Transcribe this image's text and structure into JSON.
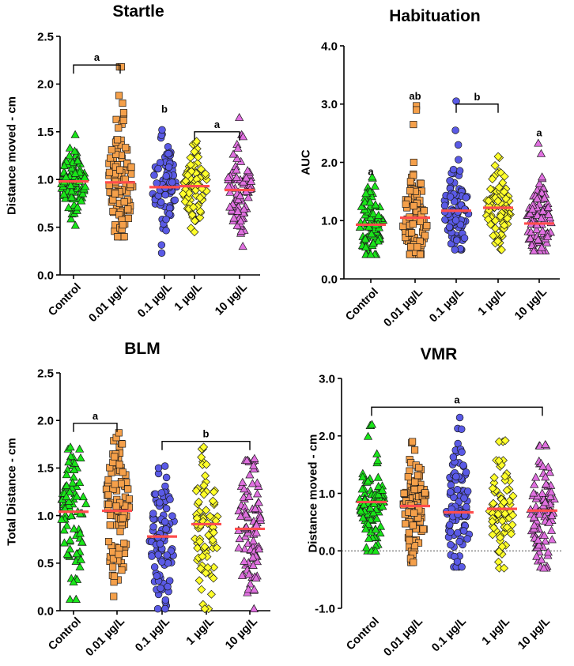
{
  "colors": {
    "Control": "#19e619",
    "0.01 µg/L": "#f5a04a",
    "0.1 µg/L": "#5a5ae6",
    "1 µg/L": "#ffff2a",
    "10 µg/L": "#e070e0",
    "mean": "#ff4d4d",
    "axis": "#000000"
  },
  "markers": {
    "Control": "triangle",
    "0.01 µg/L": "square",
    "0.1 µg/L": "circle",
    "1 µg/L": "diamond",
    "10 µg/L": "triangle"
  },
  "chart_data": [
    {
      "id": "startle",
      "type": "scatter",
      "title": "Startle",
      "ylabel": "Distance moved - cm",
      "categories": [
        "Control",
        "0.01 µg/L",
        "0.1 µg/L",
        "1 µg/L",
        "10 µg/L"
      ],
      "ylim": [
        0,
        2.5
      ],
      "yticks": [
        0.0,
        0.5,
        1.0,
        1.5,
        2.0,
        2.5
      ],
      "tick_labels": [
        "0.0",
        "0.5",
        "1.0",
        "1.5",
        "2.0",
        "2.5"
      ],
      "zero_line": false,
      "groups": [
        {
          "name": "Control",
          "mean": 0.98,
          "min": 0.52,
          "max": 1.47,
          "n": 90,
          "sd": 0.17
        },
        {
          "name": "0.01 µg/L",
          "mean": 0.97,
          "min": 0.4,
          "max": 2.18,
          "n": 90,
          "sd": 0.32,
          "outliers": [
            2.18,
            1.88,
            1.8,
            1.7
          ]
        },
        {
          "name": "0.1 µg/L",
          "mean": 0.92,
          "min": 0.23,
          "max": 1.52,
          "n": 80,
          "sd": 0.24
        },
        {
          "name": "1 µg/L",
          "mean": 0.93,
          "min": 0.45,
          "max": 1.4,
          "n": 80,
          "sd": 0.2
        },
        {
          "name": "10 µg/L",
          "mean": 0.89,
          "min": 0.3,
          "max": 1.65,
          "n": 80,
          "sd": 0.24
        }
      ],
      "brackets": [
        {
          "from": 0,
          "to": 1,
          "y": 2.2,
          "label": "a"
        },
        {
          "from": 3,
          "to": 4,
          "y": 1.5,
          "label": "a"
        }
      ],
      "annotations": [
        {
          "x": 2,
          "y": 1.7,
          "label": "b"
        }
      ]
    },
    {
      "id": "habituation",
      "type": "scatter",
      "title": "Habituation",
      "ylabel": "AUC",
      "categories": [
        "Control",
        "0.01 µg/L",
        "0.1 µg/L",
        "1 µg/L",
        "10 µg/L"
      ],
      "ylim": [
        0,
        4
      ],
      "yticks": [
        0.0,
        1.0,
        2.0,
        3.0,
        4.0
      ],
      "tick_labels": [
        "0.0",
        "1.0",
        "2.0",
        "3.0",
        "4.0"
      ],
      "zero_line": false,
      "groups": [
        {
          "name": "Control",
          "mean": 0.93,
          "min": 0.42,
          "max": 1.75,
          "n": 90,
          "sd": 0.32
        },
        {
          "name": "0.01 µg/L",
          "mean": 1.05,
          "min": 0.42,
          "max": 2.0,
          "n": 90,
          "sd": 0.38,
          "outliers": [
            2.97,
            2.9,
            2.65
          ]
        },
        {
          "name": "0.1 µg/L",
          "mean": 1.17,
          "min": 0.5,
          "max": 2.3,
          "n": 90,
          "sd": 0.4,
          "outliers": [
            3.05,
            2.55
          ]
        },
        {
          "name": "1 µg/L",
          "mean": 1.22,
          "min": 0.5,
          "max": 2.1,
          "n": 80,
          "sd": 0.35
        },
        {
          "name": "10 µg/L",
          "mean": 0.95,
          "min": 0.48,
          "max": 1.75,
          "n": 85,
          "sd": 0.33,
          "outliers": [
            2.33,
            2.15
          ]
        }
      ],
      "brackets": [
        {
          "from": 2,
          "to": 3,
          "y": 3.0,
          "label": "b"
        }
      ],
      "annotations": [
        {
          "x": 0,
          "y": 1.78,
          "label": "a"
        },
        {
          "x": 1,
          "y": 3.08,
          "label": "ab"
        },
        {
          "x": 4,
          "y": 2.45,
          "label": "a"
        }
      ]
    },
    {
      "id": "blm",
      "type": "scatter",
      "title": "BLM",
      "ylabel": "Total Distance - cm",
      "categories": [
        "Control",
        "0.01 µg/L",
        "0.1 µg/L",
        "1 µg/L",
        "10 µg/L"
      ],
      "ylim": [
        0,
        2.5
      ],
      "yticks": [
        0.0,
        0.5,
        1.0,
        1.5,
        2.0,
        2.5
      ],
      "tick_labels": [
        "0.0",
        "0.5",
        "1.0",
        "1.5",
        "2.0",
        "2.5"
      ],
      "zero_line": false,
      "groups": [
        {
          "name": "Control",
          "mean": 1.04,
          "min": 0.12,
          "max": 1.72,
          "n": 80,
          "sd": 0.42
        },
        {
          "name": "0.01 µg/L",
          "mean": 1.05,
          "min": 0.15,
          "max": 1.87,
          "n": 95,
          "sd": 0.4
        },
        {
          "name": "0.1 µg/L",
          "mean": 0.78,
          "min": 0.02,
          "max": 1.52,
          "n": 90,
          "sd": 0.4
        },
        {
          "name": "1 µg/L",
          "mean": 0.91,
          "min": 0.02,
          "max": 1.72,
          "n": 80,
          "sd": 0.42
        },
        {
          "name": "10 µg/L",
          "mean": 0.86,
          "min": 0.02,
          "max": 1.6,
          "n": 90,
          "sd": 0.42
        }
      ],
      "brackets": [
        {
          "from": 0,
          "to": 1,
          "y": 1.97,
          "label": "a"
        },
        {
          "from": 2,
          "to": 4,
          "y": 1.78,
          "label": "b"
        }
      ],
      "annotations": []
    },
    {
      "id": "vmr",
      "type": "scatter",
      "title": "VMR",
      "ylabel": "Distance moved - cm",
      "categories": [
        "Control",
        "0.01 µg/L",
        "0.1 µg/L",
        "1 µg/L",
        "10 µg/L"
      ],
      "ylim": [
        -1,
        3
      ],
      "yticks": [
        -1.0,
        0.0,
        1.0,
        2.0,
        3.0
      ],
      "tick_labels": [
        "-1.0",
        "0.0",
        "1.0",
        "2.0",
        "3.0"
      ],
      "zero_line": true,
      "groups": [
        {
          "name": "Control",
          "mean": 0.85,
          "min": 0.0,
          "max": 2.2,
          "n": 90,
          "sd": 0.5
        },
        {
          "name": "0.01 µg/L",
          "mean": 0.78,
          "min": -0.2,
          "max": 1.9,
          "n": 90,
          "sd": 0.48
        },
        {
          "name": "0.1 µg/L",
          "mean": 0.67,
          "min": -0.28,
          "max": 2.32,
          "n": 90,
          "sd": 0.62
        },
        {
          "name": "1 µg/L",
          "mean": 0.73,
          "min": -0.3,
          "max": 1.92,
          "n": 80,
          "sd": 0.52
        },
        {
          "name": "10 µg/L",
          "mean": 0.7,
          "min": -0.3,
          "max": 1.85,
          "n": 90,
          "sd": 0.55
        }
      ],
      "brackets": [
        {
          "from": 0,
          "to": 4,
          "y": 2.5,
          "label": "a"
        }
      ],
      "annotations": []
    }
  ]
}
